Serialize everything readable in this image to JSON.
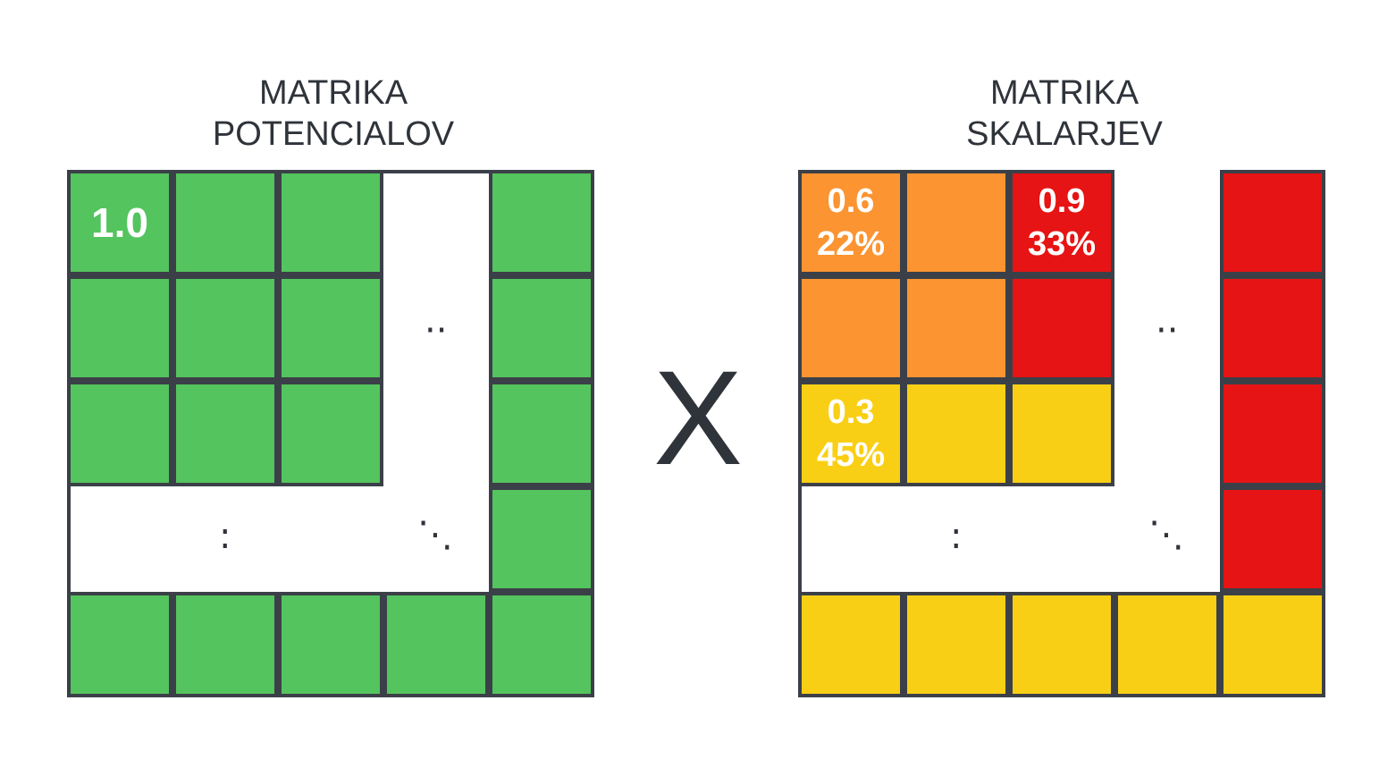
{
  "left_matrix": {
    "title_line1": "MATRIKA",
    "title_line2": "POTENCIALOV",
    "first_cell_value": "1.0",
    "color": "#54c45e"
  },
  "right_matrix": {
    "title_line1": "MATRIKA",
    "title_line2": "SKALARJEV",
    "orange_value": "0.6",
    "orange_percent": "22%",
    "red_value": "0.9",
    "red_percent": "33%",
    "yellow_value": "0.3",
    "yellow_percent": "45%",
    "colors": {
      "orange": "#fb9431",
      "red": "#e61414",
      "yellow": "#f9cf15"
    }
  },
  "operator": "X",
  "ellipsis": {
    "horizontal": "··",
    "vertical": ":",
    "diagonal": "⋱"
  }
}
